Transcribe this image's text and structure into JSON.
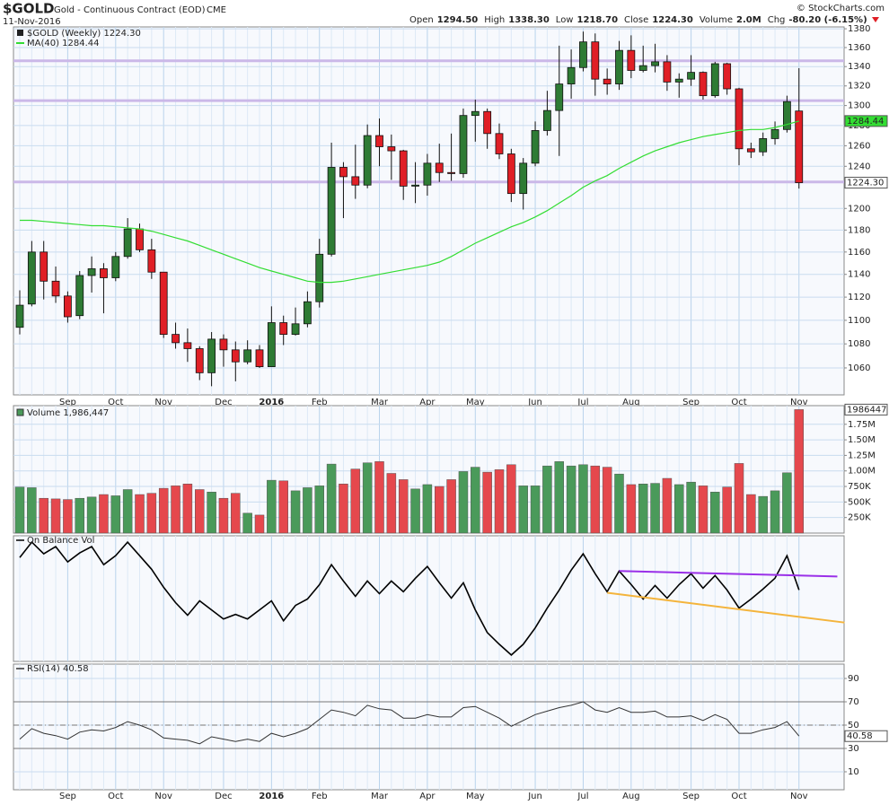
{
  "header": {
    "symbol": "$GOLD",
    "description": "Gold - Continuous Contract (EOD)",
    "exchange": "CME",
    "date": "11-Nov-2016",
    "credit": "© StockCharts.com",
    "quote": [
      {
        "label": "Open",
        "value": "1294.50"
      },
      {
        "label": "High",
        "value": "1338.30"
      },
      {
        "label": "Low",
        "value": "1218.70"
      },
      {
        "label": "Close",
        "value": "1224.30"
      },
      {
        "label": "Volume",
        "value": "2.0M"
      },
      {
        "label": "Chg",
        "value": "-80.20 (-6.15%)"
      }
    ]
  },
  "chart_data": [
    {
      "type": "candlestick",
      "log_scale": true,
      "grid": true,
      "ylim": [
        1038,
        1382
      ],
      "yticks": [
        1060,
        1080,
        1100,
        1120,
        1140,
        1160,
        1180,
        1200,
        1240,
        1260,
        1280,
        1300,
        1320,
        1340,
        1360,
        1380
      ],
      "categories": [
        null,
        null,
        null,
        null,
        "Sep",
        null,
        null,
        null,
        "Oct",
        null,
        null,
        null,
        "Nov",
        null,
        null,
        null,
        null,
        "Dec",
        null,
        null,
        null,
        "2016",
        null,
        null,
        null,
        "Feb",
        null,
        null,
        null,
        null,
        "Mar",
        null,
        null,
        null,
        "Apr",
        null,
        null,
        null,
        "May",
        null,
        null,
        null,
        null,
        "Jun",
        null,
        null,
        null,
        "Jul",
        null,
        null,
        null,
        "Aug",
        null,
        null,
        null,
        null,
        "Sep",
        null,
        null,
        null,
        "Oct",
        null,
        null,
        null,
        null,
        "Nov"
      ],
      "reference_lines": [
        1346,
        1305,
        1225
      ],
      "reference_color": "#cbb8e8",
      "series": [
        {
          "name": "$GOLD (Weekly) 1224.30",
          "up_color": "#2e7b34",
          "down_color": "#e01f26",
          "last_label": "1224.30",
          "open": [
            1094,
            1114,
            1160,
            1134,
            1121,
            1104,
            1139,
            1145,
            1137,
            1156,
            1181,
            1162,
            1142,
            1088,
            1081,
            1076,
            1056,
            1084,
            1075,
            1065,
            1075,
            1061,
            1098,
            1088,
            1097,
            1116,
            1158,
            1239,
            1230,
            1222,
            1270,
            1259,
            1255,
            1221,
            1222,
            1243,
            1234,
            1233,
            1290,
            1294,
            1272,
            1252,
            1214,
            1243,
            1275,
            1295,
            1322,
            1339,
            1366,
            1327,
            1322,
            1357,
            1336,
            1341,
            1345,
            1324,
            1327,
            1334,
            1310,
            1343,
            1317,
            1257,
            1254,
            1267,
            1276,
            1294.5
          ],
          "high": [
            1126,
            1170,
            1170,
            1147,
            1125,
            1143,
            1156,
            1150,
            1160,
            1191,
            1186,
            1172,
            1142,
            1098,
            1093,
            1078,
            1090,
            1088,
            1082,
            1083,
            1079,
            1112,
            1104,
            1111,
            1125,
            1172,
            1263,
            1244,
            1261,
            1281,
            1287,
            1271,
            1256,
            1244,
            1252,
            1262,
            1272,
            1297,
            1306,
            1297,
            1282,
            1257,
            1248,
            1284,
            1315,
            1362,
            1358,
            1377,
            1375,
            1338,
            1367,
            1373,
            1362,
            1364,
            1352,
            1333,
            1352,
            1335,
            1345,
            1344,
            1318,
            1263,
            1273,
            1284,
            1310,
            1338.3
          ],
          "low": [
            1088,
            1112,
            1118,
            1115,
            1098,
            1101,
            1124,
            1106,
            1134,
            1154,
            1160,
            1136,
            1085,
            1076,
            1065,
            1050,
            1045,
            1061,
            1049,
            1063,
            1060,
            1061,
            1079,
            1087,
            1094,
            1111,
            1156,
            1191,
            1209,
            1219,
            1240,
            1227,
            1208,
            1205,
            1212,
            1225,
            1226,
            1229,
            1264,
            1257,
            1247,
            1206,
            1199,
            1240,
            1270,
            1250,
            1307,
            1335,
            1310,
            1311,
            1316,
            1328,
            1334,
            1334,
            1315,
            1308,
            1320,
            1306,
            1308,
            1311,
            1241,
            1248,
            1250,
            1261,
            1273,
            1218.7
          ],
          "close": [
            1113,
            1160,
            1134,
            1121,
            1103,
            1139,
            1145,
            1137,
            1156,
            1181,
            1162,
            1142,
            1088,
            1081,
            1076,
            1056,
            1084,
            1075,
            1065,
            1075,
            1061,
            1098,
            1088,
            1097,
            1116,
            1158,
            1239,
            1230,
            1222,
            1270,
            1259,
            1255,
            1221,
            1222,
            1243,
            1234,
            1233,
            1290,
            1294,
            1272,
            1252,
            1214,
            1243,
            1275,
            1295,
            1322,
            1339,
            1366,
            1327,
            1322,
            1357,
            1336,
            1341,
            1345,
            1324,
            1327,
            1334,
            1310,
            1343,
            1317,
            1257,
            1254,
            1267,
            1276,
            1304,
            1224.3
          ]
        },
        {
          "name": "MA(40) 1284.44",
          "color": "#33dd33",
          "last_label": "1284.44",
          "values": [
            1189,
            1189,
            1188,
            1187,
            1186,
            1185,
            1184,
            1184,
            1183,
            1182,
            1181,
            1179,
            1176,
            1173,
            1170,
            1166,
            1162,
            1158,
            1154,
            1150,
            1146,
            1143,
            1140,
            1137,
            1134,
            1133,
            1133,
            1134,
            1136,
            1138,
            1140,
            1142,
            1144,
            1146,
            1148,
            1151,
            1156,
            1162,
            1168,
            1173,
            1178,
            1183,
            1187,
            1192,
            1198,
            1205,
            1212,
            1220,
            1226,
            1231,
            1238,
            1244,
            1250,
            1255,
            1259,
            1263,
            1266,
            1269,
            1271,
            1273,
            1275,
            1276,
            1276,
            1278,
            1281,
            1284.44
          ]
        }
      ]
    },
    {
      "type": "bar",
      "grid": true,
      "ylim": [
        0,
        2050000
      ],
      "yticks": [
        {
          "value": 250000,
          "label": "250K"
        },
        {
          "value": 500000,
          "label": "500K"
        },
        {
          "value": 750000,
          "label": "750K"
        },
        {
          "value": 1000000,
          "label": "1.00M"
        },
        {
          "value": 1250000,
          "label": "1.25M"
        },
        {
          "value": 1500000,
          "label": "1.50M"
        },
        {
          "value": 1750000,
          "label": "1.75M"
        }
      ],
      "series": [
        {
          "name": "Volume 1,986,447",
          "up_color": "#4a9a5a",
          "down_color": "#e5484d",
          "values": [
            740000,
            730000,
            560000,
            550000,
            540000,
            560000,
            580000,
            620000,
            600000,
            700000,
            620000,
            640000,
            720000,
            760000,
            790000,
            700000,
            660000,
            560000,
            640000,
            320000,
            290000,
            850000,
            840000,
            680000,
            730000,
            760000,
            1110000,
            790000,
            1030000,
            1130000,
            1150000,
            960000,
            860000,
            710000,
            780000,
            750000,
            860000,
            990000,
            1060000,
            980000,
            1020000,
            1100000,
            760000,
            760000,
            1080000,
            1150000,
            1080000,
            1100000,
            1080000,
            1060000,
            950000,
            780000,
            790000,
            800000,
            880000,
            780000,
            820000,
            760000,
            660000,
            740000,
            1120000,
            620000,
            590000,
            680000,
            970000,
            1986447
          ]
        }
      ]
    },
    {
      "type": "line",
      "grid": true,
      "ylim": [
        3,
        142
      ],
      "series": [
        {
          "name": "On Balance Vol",
          "color": "#000000",
          "values": [
            118,
            135,
            122,
            130,
            113,
            123,
            130,
            110,
            120,
            135,
            120,
            105,
            85,
            68,
            54,
            70,
            60,
            50,
            55,
            50,
            60,
            70,
            48,
            65,
            72,
            88,
            110,
            92,
            75,
            92,
            78,
            92,
            80,
            95,
            108,
            90,
            73,
            90,
            60,
            35,
            22,
            10,
            22,
            40,
            62,
            82,
            104,
            122,
            100,
            80,
            103,
            88,
            72,
            87,
            73,
            88,
            100,
            84,
            98,
            82,
            62,
            72,
            83,
            95,
            120,
            82
          ]
        }
      ],
      "trendlines": [
        {
          "color": "#9a30e8",
          "x": [
            50,
            68.2
          ],
          "values": [
            103,
            97
          ]
        },
        {
          "color": "#f4b43c",
          "x": [
            49,
            68.8
          ],
          "values": [
            79,
            46
          ]
        }
      ]
    },
    {
      "type": "line",
      "grid": true,
      "ylim": [
        -5.4,
        102.3
      ],
      "yticks": [
        10,
        30,
        50,
        70,
        90
      ],
      "reference_lines": [
        70,
        50,
        30
      ],
      "series": [
        {
          "name": "RSI(14) 40.58",
          "color": "#333333",
          "values": [
            38,
            47,
            43,
            41,
            38,
            44,
            46,
            45,
            48,
            53,
            50,
            46,
            39,
            38,
            37,
            34,
            40,
            38,
            36,
            38,
            36,
            43,
            40,
            43,
            47,
            55,
            63,
            61,
            58,
            67,
            64,
            63,
            56,
            56,
            59,
            57,
            57,
            65,
            66,
            61,
            56,
            49,
            54,
            59,
            62,
            65,
            67,
            70,
            63,
            61,
            65,
            61,
            61,
            62,
            57,
            57,
            58,
            54,
            59,
            55,
            43,
            43,
            46,
            48,
            53,
            40.58
          ]
        }
      ]
    }
  ]
}
